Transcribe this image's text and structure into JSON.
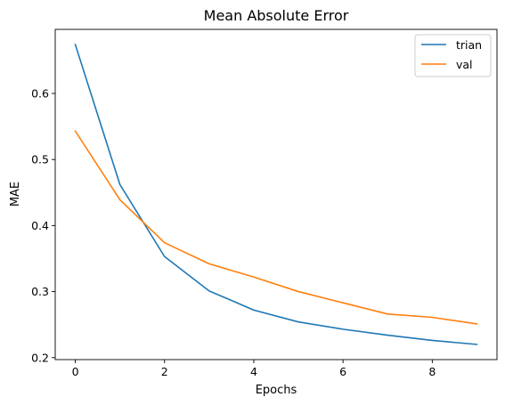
{
  "chart_data": {
    "type": "line",
    "title": "Mean Absolute Error",
    "xlabel": "Epochs",
    "ylabel": "MAE",
    "x": [
      0,
      1,
      2,
      3,
      4,
      5,
      6,
      7,
      8,
      9
    ],
    "series": [
      {
        "name": "trian",
        "color": "#1f77b4",
        "values": [
          0.674,
          0.462,
          0.353,
          0.301,
          0.272,
          0.254,
          0.243,
          0.234,
          0.226,
          0.22
        ]
      },
      {
        "name": "val",
        "color": "#ff7f0e",
        "values": [
          0.543,
          0.439,
          0.374,
          0.342,
          0.322,
          0.3,
          0.283,
          0.266,
          0.261,
          0.251
        ]
      }
    ],
    "xticks": [
      0,
      2,
      4,
      6,
      8
    ],
    "yticks": [
      0.2,
      0.3,
      0.4,
      0.5,
      0.6
    ],
    "xtick_labels": [
      "0",
      "2",
      "4",
      "6",
      "8"
    ],
    "ytick_labels": [
      "0.2",
      "0.3",
      "0.4",
      "0.5",
      "0.6"
    ],
    "xlim": [
      -0.45,
      9.45
    ],
    "ylim": [
      0.197,
      0.697
    ],
    "grid": false,
    "legend_position": "top-right"
  }
}
